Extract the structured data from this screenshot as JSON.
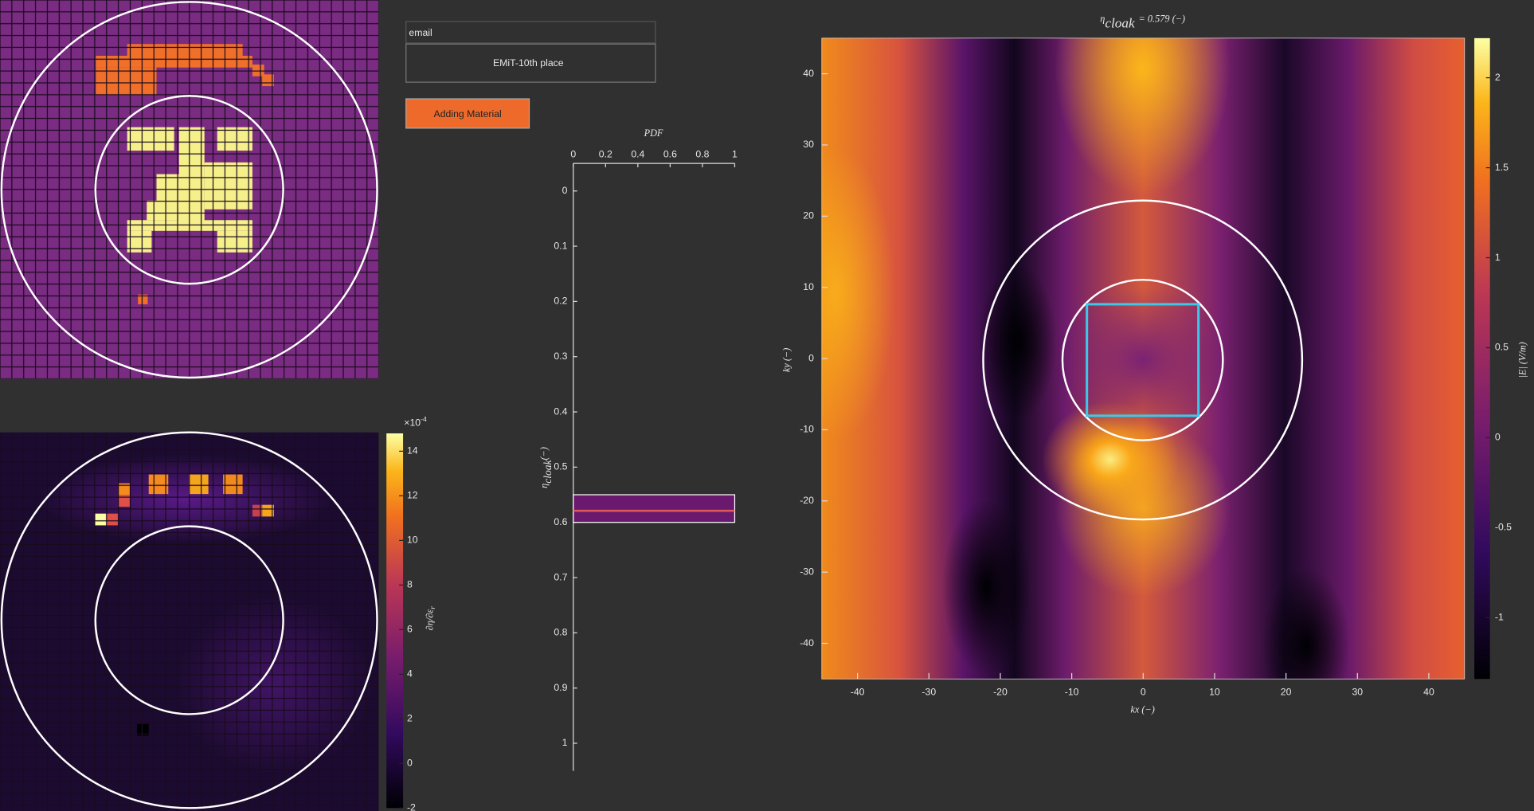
{
  "inputs": {
    "email_label": "email",
    "team": "EMiT-10th place",
    "button": "Adding Material"
  },
  "gradient_colorbar": {
    "exponent_base": "×10",
    "exponent": "-4",
    "label_numerator": "∂η",
    "label_denominator": "∂ε",
    "label_subscript": "r",
    "lim": [
      -2,
      14.8
    ],
    "ticks": [
      -2,
      0,
      2,
      4,
      6,
      8,
      10,
      12,
      14
    ]
  },
  "pdf_chart": {
    "title": "PDF",
    "ylabel_symbol": "η",
    "ylabel_subscript": "cloak",
    "ylabel_unit": "(−)",
    "xlim": [
      0,
      1
    ],
    "xticks": [
      0,
      0.2,
      0.4,
      0.6,
      0.8,
      1
    ],
    "ylim": [
      -0.05,
      1.05
    ],
    "yticks": [
      0,
      0.1,
      0.2,
      0.3,
      0.4,
      0.5,
      0.6,
      0.7,
      0.8,
      0.9,
      1
    ],
    "bar_range": [
      0.55,
      0.6
    ],
    "bar_width": 1,
    "value": 0.579
  },
  "field_chart": {
    "title_symbol": "η",
    "title_subscript": "cloak",
    "title_rest": "= 0.579 (−)",
    "xlabel": "kx (−)",
    "ylabel": "ky (−)",
    "xlim": [
      -45,
      45
    ],
    "xticks": [
      -40,
      -30,
      -20,
      -10,
      0,
      10,
      20,
      30,
      40
    ],
    "ylim": [
      -45,
      45
    ],
    "yticks": [
      -40,
      -30,
      -20,
      -10,
      0,
      10,
      20,
      30,
      40
    ],
    "colorbar": {
      "label": "|E| (V/m)",
      "lim": [
        -1.34,
        2.22
      ],
      "ticks": [
        -1,
        -0.5,
        0,
        0.5,
        1,
        1.5,
        2
      ]
    }
  }
}
